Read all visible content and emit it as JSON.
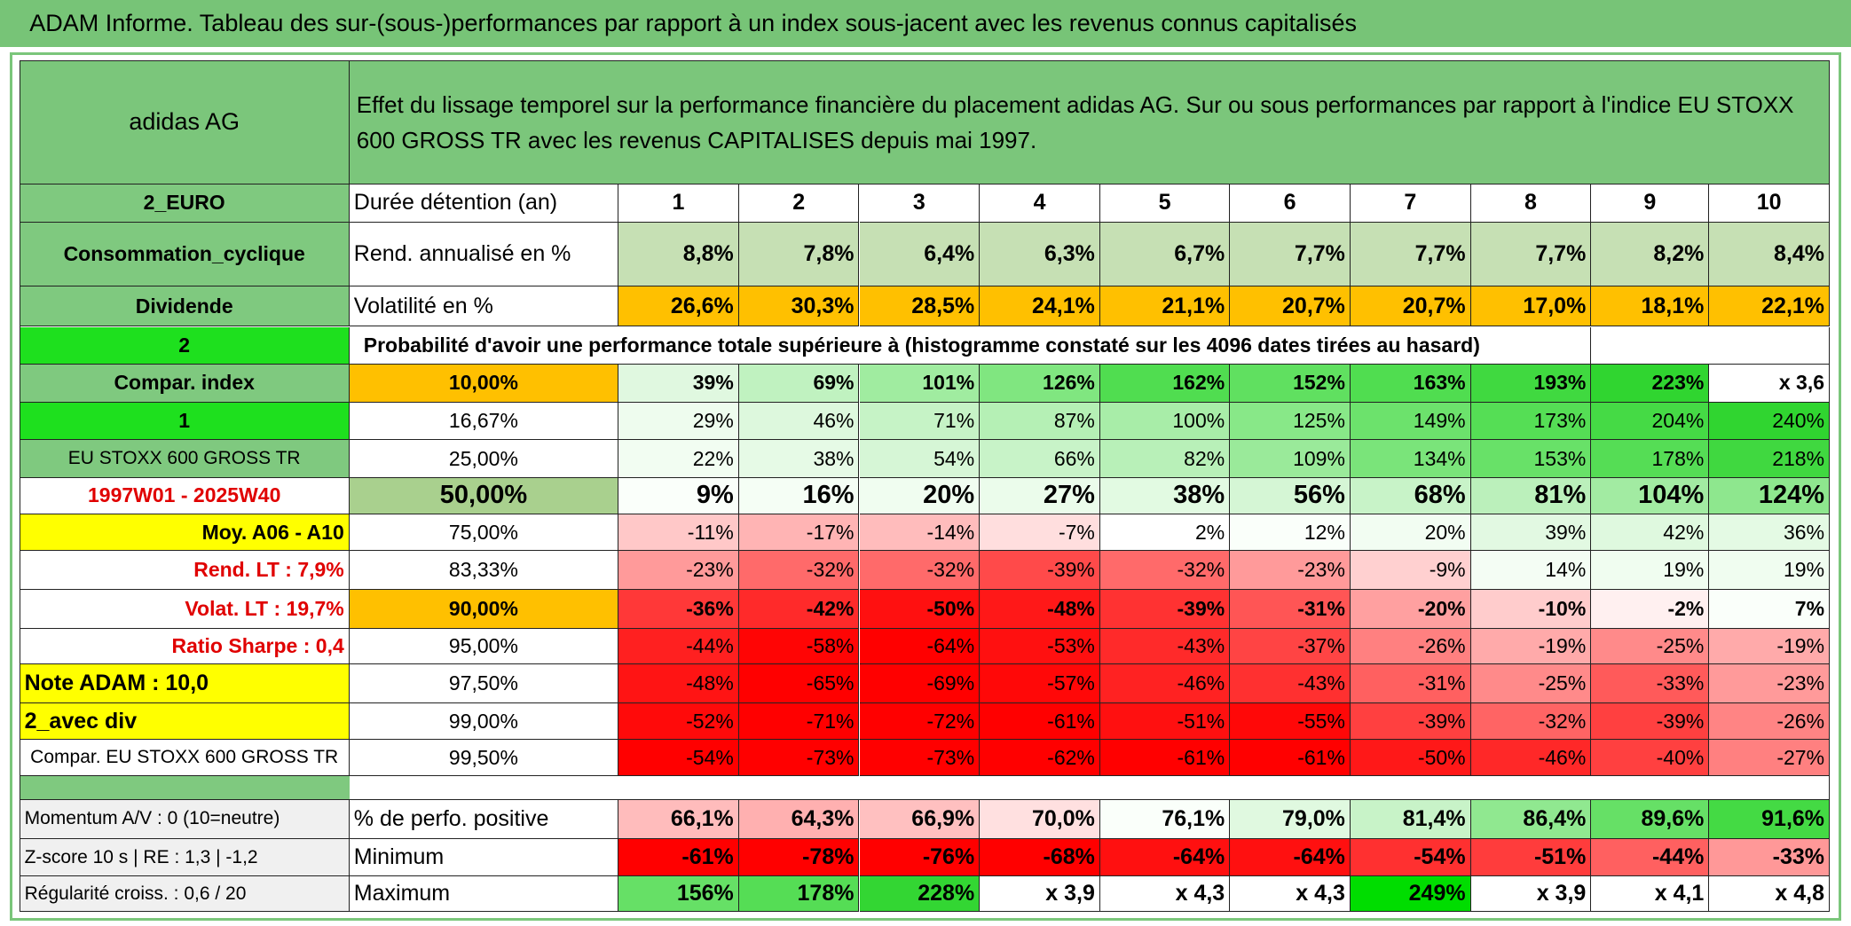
{
  "title": "ADAM Informe. Tableau des sur-(sous-)performances par rapport à un index sous-jacent avec les revenus connus capitalisés",
  "header": {
    "name": "adidas AG",
    "bg": "#7bc67b",
    "description": "Effet du lissage temporel sur la performance financière du placement adidas AG. Sur ou sous performances par rapport à l'indice EU STOXX 600 GROSS TR avec les revenus CAPITALISES depuis mai 1997."
  },
  "rows": [
    {
      "label": "2_EURO",
      "label_bg": "#7fc97f",
      "first": "Durée détention (an)",
      "first_bg": "#ffffff",
      "values": [
        "1",
        "2",
        "3",
        "4",
        "5",
        "6",
        "7",
        "8",
        "9",
        "10"
      ],
      "bg": [
        "#ffffff",
        "#ffffff",
        "#ffffff",
        "#ffffff",
        "#ffffff",
        "#ffffff",
        "#ffffff",
        "#ffffff",
        "#ffffff",
        "#ffffff"
      ]
    },
    {
      "label": "Consommation_cyclique",
      "label_bg": "#7fc97f",
      "first": "Rend. annualisé en %",
      "first_bg": "#ffffff",
      "values": [
        "8,8%",
        "7,8%",
        "6,4%",
        "6,3%",
        "6,7%",
        "7,7%",
        "7,7%",
        "7,7%",
        "8,2%",
        "8,4%"
      ],
      "bg": [
        "#c6e0b4",
        "#c6e0b4",
        "#c6e0b4",
        "#c6e0b4",
        "#c6e0b4",
        "#c6e0b4",
        "#c6e0b4",
        "#c6e0b4",
        "#c6e0b4",
        "#c6e0b4"
      ]
    },
    {
      "label": "Dividende",
      "label_bg": "#7fc97f",
      "first": "Volatilité en %",
      "first_bg": "#ffffff",
      "values": [
        "26,6%",
        "30,3%",
        "28,5%",
        "24,1%",
        "21,1%",
        "20,7%",
        "20,7%",
        "17,0%",
        "18,1%",
        "22,1%"
      ],
      "bg": [
        "#ffc000",
        "#ffc000",
        "#ffc000",
        "#ffc000",
        "#ffc000",
        "#ffc000",
        "#ffc000",
        "#ffc000",
        "#ffc000",
        "#ffc000"
      ]
    },
    {
      "label": "2",
      "label_bg": "#1ee01e",
      "span": "Probabilité d'avoir une performance totale supérieure à (histogramme constaté sur les 4096 dates tirées au hasard)"
    },
    {
      "label": "Compar. index",
      "label_bg": "#7fc97f",
      "first": "10,00%",
      "first_bg": "#ffc000",
      "values": [
        "39%",
        "69%",
        "101%",
        "126%",
        "162%",
        "152%",
        "163%",
        "193%",
        "223%",
        "x 3,6"
      ],
      "bg": [
        "#e0f8e0",
        "#c0f2c0",
        "#a0eca0",
        "#80e680",
        "#50dd50",
        "#60e060",
        "#50dd50",
        "#40d940",
        "#30d530",
        "#ffffff"
      ]
    },
    {
      "label": "1",
      "label_bg": "#1ee01e",
      "first": "16,67%",
      "first_bg": "#ffffff",
      "values": [
        "29%",
        "46%",
        "71%",
        "87%",
        "100%",
        "125%",
        "149%",
        "173%",
        "204%",
        "240%"
      ],
      "bg": [
        "#eefcee",
        "#ddf8dd",
        "#c6f3c6",
        "#b5f0b5",
        "#a8eda8",
        "#88e888",
        "#6ce26c",
        "#55de55",
        "#45da45",
        "#30d530"
      ]
    },
    {
      "label": "EU STOXX 600 GROSS TR",
      "label_bg": "#7fc97f",
      "first": "25,00%",
      "first_bg": "#ffffff",
      "values": [
        "22%",
        "38%",
        "54%",
        "66%",
        "82%",
        "109%",
        "134%",
        "153%",
        "178%",
        "218%"
      ],
      "bg": [
        "#f2fdf2",
        "#e6fae6",
        "#d6f6d6",
        "#c8f3c8",
        "#b8f0b8",
        "#9aea9a",
        "#7ae47a",
        "#68e168",
        "#55dd55",
        "#40d840"
      ]
    },
    {
      "label": "1997W01 - 2025W40",
      "label_bg": "#ffffff",
      "label_color": "#e00000",
      "first": "50,00%",
      "first_bg": "#a9d08e",
      "values": [
        "9%",
        "16%",
        "20%",
        "27%",
        "38%",
        "56%",
        "68%",
        "81%",
        "104%",
        "124%"
      ],
      "bg": [
        "#fafffa",
        "#f5fef5",
        "#f0fdf0",
        "#ebfceb",
        "#e2fae2",
        "#d5f6d5",
        "#c8f3c8",
        "#bbf0bb",
        "#a2eba2",
        "#8ee78e"
      ]
    },
    {
      "label": "Moy. A06 - A10",
      "label_bg": "#ffff00",
      "first": "75,00%",
      "first_bg": "#ffffff",
      "values": [
        "-11%",
        "-17%",
        "-14%",
        "-7%",
        "2%",
        "12%",
        "20%",
        "39%",
        "42%",
        "36%"
      ],
      "bg": [
        "#ffc8c8",
        "#ffb4b4",
        "#ffbcbc",
        "#ffdede",
        "#ffffff",
        "#fafffa",
        "#f2fdf2",
        "#e2f9e2",
        "#dff9df",
        "#e4fae4"
      ]
    },
    {
      "label": "Rend. LT :   7,9%",
      "label_bg": "#ffffff",
      "label_color": "#e00000",
      "first": "83,33%",
      "first_bg": "#ffffff",
      "values": [
        "-23%",
        "-32%",
        "-32%",
        "-39%",
        "-32%",
        "-23%",
        "-9%",
        "14%",
        "19%",
        "19%"
      ],
      "bg": [
        "#ff9a9a",
        "#ff6a6a",
        "#ff6a6a",
        "#ff4a4a",
        "#ff6a6a",
        "#ff9a9a",
        "#ffd0d0",
        "#f4fdf4",
        "#f0fdf0",
        "#f0fdf0"
      ]
    },
    {
      "label": "Volat. LT :   19,7%",
      "label_bg": "#ffffff",
      "label_color": "#e00000",
      "first": "90,00%",
      "first_bg": "#ffc000",
      "values": [
        "-36%",
        "-42%",
        "-50%",
        "-48%",
        "-39%",
        "-31%",
        "-20%",
        "-10%",
        "-2%",
        "7%"
      ],
      "bg": [
        "#ff3838",
        "#ff2a2a",
        "#ff1010",
        "#ff1818",
        "#ff3232",
        "#ff5555",
        "#ffa0a0",
        "#ffcccc",
        "#fff0f0",
        "#fafffa"
      ]
    },
    {
      "label": "Ratio Sharpe :   0,4",
      "label_bg": "#ffffff",
      "label_color": "#e00000",
      "first": "95,00%",
      "first_bg": "#ffffff",
      "values": [
        "-44%",
        "-58%",
        "-64%",
        "-53%",
        "-43%",
        "-37%",
        "-26%",
        "-19%",
        "-25%",
        "-19%"
      ],
      "bg": [
        "#ff2020",
        "#ff0505",
        "#ff0000",
        "#ff1010",
        "#ff2a2a",
        "#ff4444",
        "#ff8080",
        "#ffaaaa",
        "#ff8a8a",
        "#ffaaaa"
      ]
    },
    {
      "label": "Note ADAM : 10,0",
      "label_bg": "#ffff00",
      "first": "97,50%",
      "first_bg": "#ffffff",
      "values": [
        "-48%",
        "-65%",
        "-69%",
        "-57%",
        "-46%",
        "-43%",
        "-31%",
        "-25%",
        "-33%",
        "-23%"
      ],
      "bg": [
        "#ff1414",
        "#ff0000",
        "#ff0000",
        "#ff0808",
        "#ff2222",
        "#ff3030",
        "#ff6060",
        "#ff8a8a",
        "#ff5a5a",
        "#ff9a9a"
      ]
    },
    {
      "label": "2_avec div",
      "label_bg": "#ffff00",
      "first": "99,00%",
      "first_bg": "#ffffff",
      "values": [
        "-52%",
        "-71%",
        "-72%",
        "-61%",
        "-51%",
        "-55%",
        "-39%",
        "-32%",
        "-39%",
        "-26%"
      ],
      "bg": [
        "#ff0a0a",
        "#ff0000",
        "#ff0000",
        "#ff0000",
        "#ff1010",
        "#ff0808",
        "#ff4040",
        "#ff6464",
        "#ff4040",
        "#ff8484"
      ]
    },
    {
      "label": "Compar. EU STOXX 600 GROSS TR",
      "label_bg": "#ffffff",
      "first": "99,50%",
      "first_bg": "#ffffff",
      "values": [
        "-54%",
        "-73%",
        "-73%",
        "-62%",
        "-61%",
        "-61%",
        "-50%",
        "-46%",
        "-40%",
        "-27%"
      ],
      "bg": [
        "#ff0000",
        "#ff0000",
        "#ff0000",
        "#ff0000",
        "#ff0000",
        "#ff0000",
        "#ff1818",
        "#ff2828",
        "#ff4040",
        "#ff8080"
      ]
    },
    {
      "label": "Momentum A/V : 0 (10=neutre)",
      "label_bg": "#f0f0f0",
      "first": "% de perfo. positive",
      "first_bg": "#ffffff",
      "values": [
        "66,1%",
        "64,3%",
        "66,9%",
        "70,0%",
        "76,1%",
        "79,0%",
        "81,4%",
        "86,4%",
        "89,6%",
        "91,6%"
      ],
      "bg": [
        "#ffbcbc",
        "#ffb0b0",
        "#ffc0c0",
        "#ffe0e0",
        "#fafffa",
        "#e0f9e0",
        "#c8f3c8",
        "#90e890",
        "#66e066",
        "#44da44"
      ]
    },
    {
      "label": "Z-score 10 s | RE : 1,3 | -1,2",
      "label_bg": "#f0f0f0",
      "first": "Minimum",
      "first_bg": "#ffffff",
      "values": [
        "-61%",
        "-78%",
        "-76%",
        "-68%",
        "-64%",
        "-64%",
        "-54%",
        "-51%",
        "-44%",
        "-33%"
      ],
      "bg": [
        "#ff0000",
        "#ff0000",
        "#ff0000",
        "#ff0000",
        "#ff1010",
        "#ff1010",
        "#ff3030",
        "#ff3c3c",
        "#ff6060",
        "#ff9898"
      ]
    },
    {
      "label": "Régularité croiss. : 0,6 / 20",
      "label_bg": "#f0f0f0",
      "first": "Maximum",
      "first_bg": "#ffffff",
      "values": [
        "156%",
        "178%",
        "228%",
        "x 3,9",
        "x 4,3",
        "x 4,3",
        "249%",
        "x 3,9",
        "x 4,1",
        "x 4,8"
      ],
      "bg": [
        "#66e066",
        "#55dd55",
        "#33d633",
        "#ffffff",
        "#ffffff",
        "#ffffff",
        "#00dd00",
        "#ffffff",
        "#ffffff",
        "#ffffff"
      ]
    }
  ],
  "gap_bg": "#7fc97f",
  "title_bg": "#77c477"
}
